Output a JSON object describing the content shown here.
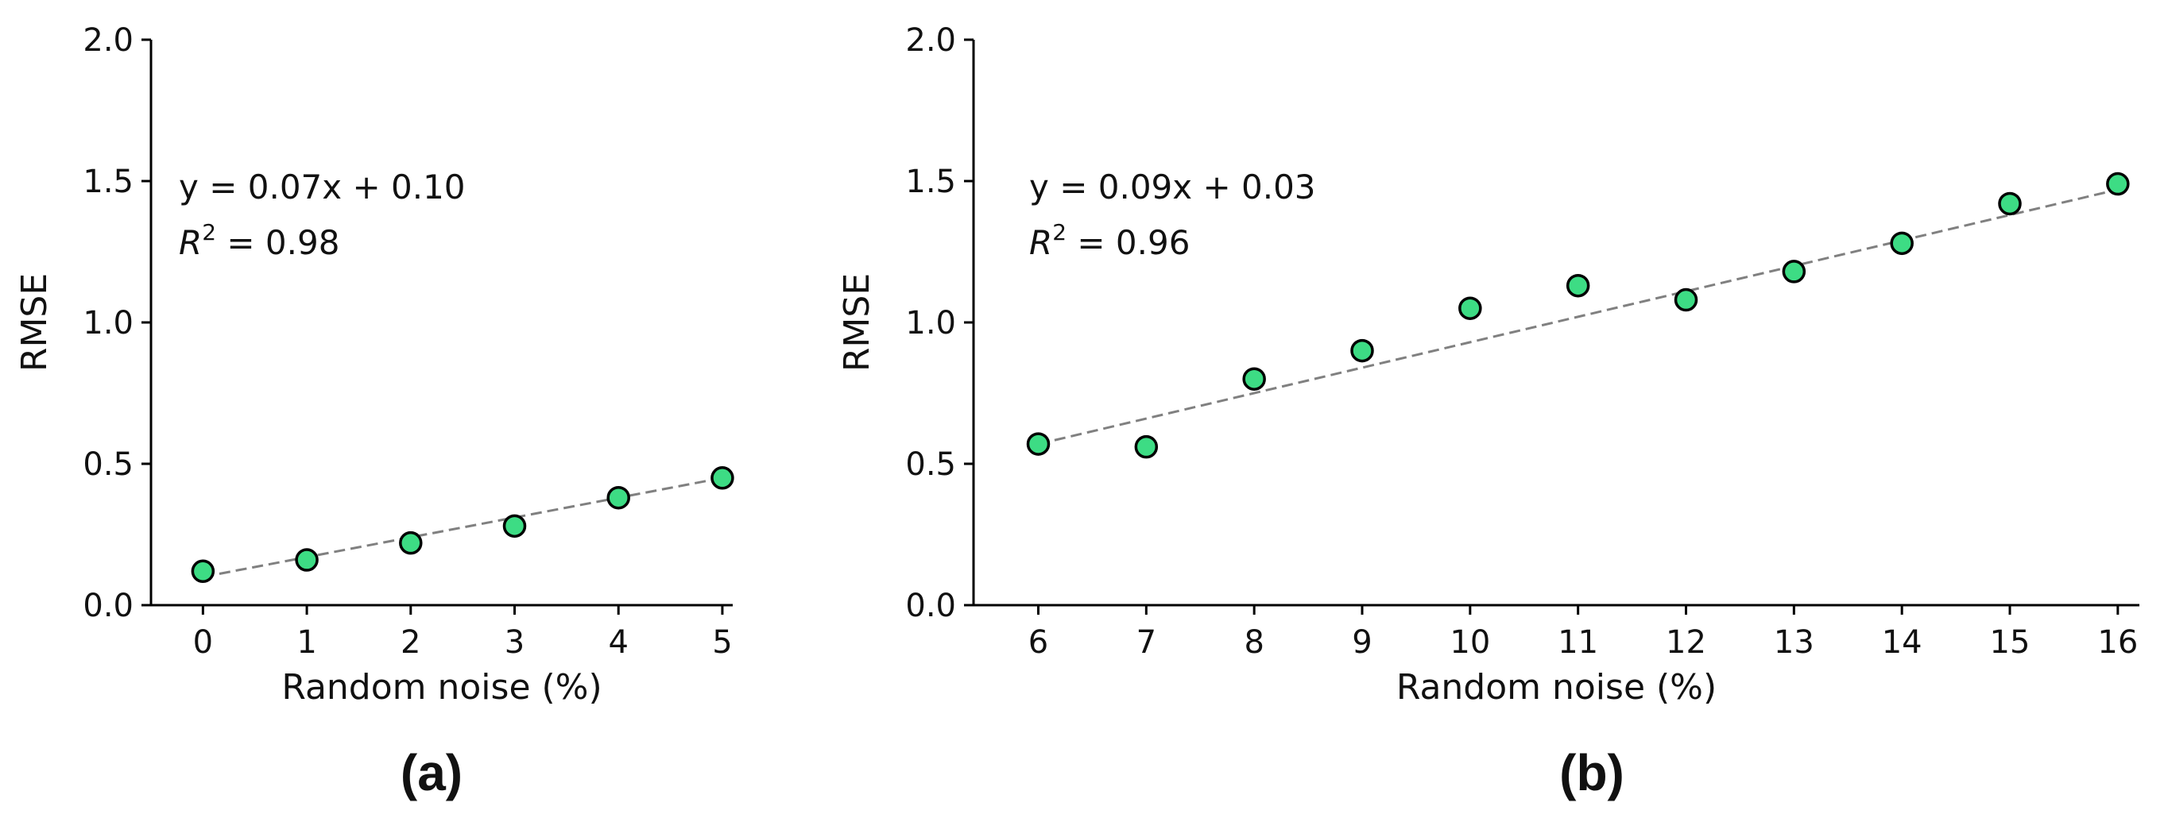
{
  "chart_data": [
    {
      "type": "scatter",
      "panel_label": "(a)",
      "xlabel": "Random noise (%)",
      "ylabel": "RMSE",
      "xlim": [
        -0.5,
        5.1
      ],
      "ylim": [
        0,
        2.0
      ],
      "xticks": [
        0,
        1,
        2,
        3,
        4,
        5
      ],
      "yticks": [
        0.0,
        0.5,
        1.0,
        1.5,
        2.0
      ],
      "x": [
        0,
        1,
        2,
        3,
        4,
        5
      ],
      "y": [
        0.12,
        0.16,
        0.22,
        0.28,
        0.38,
        0.45
      ],
      "fit": {
        "slope": 0.07,
        "intercept": 0.1
      },
      "equation": "y = 0.07x + 0.10",
      "r2_value": "0.98",
      "marker_color": "#3ddc84",
      "line_color": "#808080"
    },
    {
      "type": "scatter",
      "panel_label": "(b)",
      "xlabel": "Random noise (%)",
      "ylabel": "RMSE",
      "xlim": [
        5.4,
        16.2
      ],
      "ylim": [
        0,
        2.0
      ],
      "xticks": [
        6,
        7,
        8,
        9,
        10,
        11,
        12,
        13,
        14,
        15,
        16
      ],
      "yticks": [
        0.0,
        0.5,
        1.0,
        1.5,
        2.0
      ],
      "x": [
        6,
        7,
        8,
        9,
        10,
        11,
        12,
        13,
        14,
        15,
        16
      ],
      "y": [
        0.57,
        0.56,
        0.8,
        0.9,
        1.05,
        1.13,
        1.08,
        1.18,
        1.28,
        1.42,
        1.49
      ],
      "fit": {
        "slope": 0.09,
        "intercept": 0.03
      },
      "equation": "y = 0.09x + 0.03",
      "r2_value": "0.96",
      "marker_color": "#3ddc84",
      "line_color": "#808080"
    }
  ]
}
